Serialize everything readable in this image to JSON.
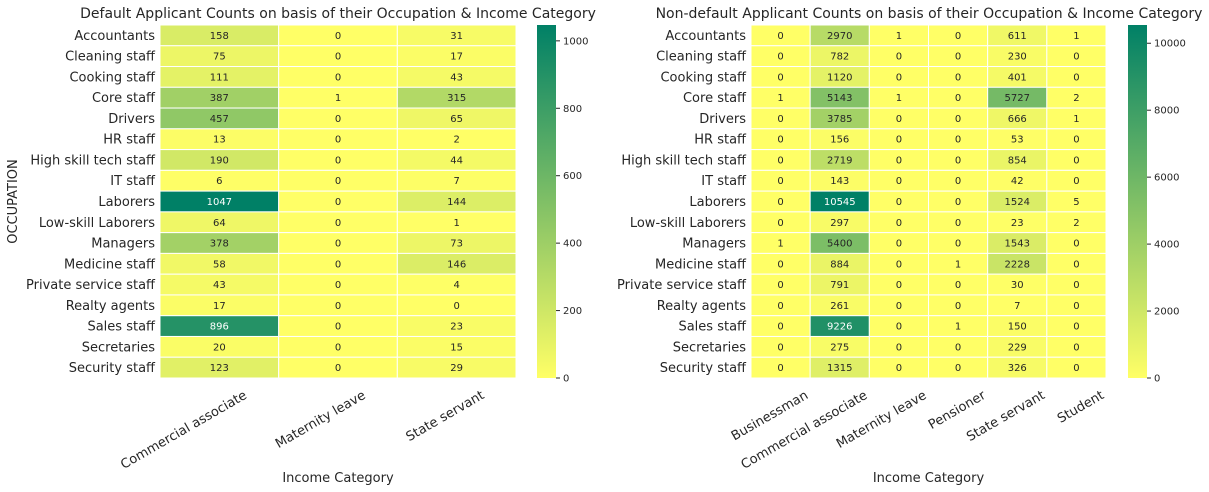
{
  "chart_data": [
    {
      "type": "heatmap",
      "title": "Default Applicant Counts on basis of their Occupation & Income Category",
      "xlabel": "Income Category",
      "ylabel": "OCCUPATION",
      "x_categories": [
        "Commercial associate",
        "Maternity leave",
        "State servant"
      ],
      "y_categories": [
        "Accountants",
        "Cleaning staff",
        "Cooking staff",
        "Core staff",
        "Drivers",
        "HR staff",
        "High skill tech staff",
        "IT staff",
        "Laborers",
        "Low-skill Laborers",
        "Managers",
        "Medicine staff",
        "Private service staff",
        "Realty agents",
        "Sales staff",
        "Secretaries",
        "Security staff"
      ],
      "values": [
        [
          158,
          0,
          31
        ],
        [
          75,
          0,
          17
        ],
        [
          111,
          0,
          43
        ],
        [
          387,
          1,
          315
        ],
        [
          457,
          0,
          65
        ],
        [
          13,
          0,
          2
        ],
        [
          190,
          0,
          44
        ],
        [
          6,
          0,
          7
        ],
        [
          1047,
          0,
          144
        ],
        [
          64,
          0,
          1
        ],
        [
          378,
          0,
          73
        ],
        [
          58,
          0,
          146
        ],
        [
          43,
          0,
          4
        ],
        [
          17,
          0,
          0
        ],
        [
          896,
          0,
          23
        ],
        [
          20,
          0,
          15
        ],
        [
          123,
          0,
          29
        ]
      ],
      "colorbar": {
        "min": 0,
        "max": 1047,
        "ticks": [
          "0",
          "200",
          "400",
          "600",
          "800",
          "1000"
        ]
      },
      "colormap": "summer_r",
      "colors": {
        "low": "#ffff66",
        "high": "#008066"
      }
    },
    {
      "type": "heatmap",
      "title": "Non-default Applicant Counts on basis of their Occupation & Income Category",
      "xlabel": "Income Category",
      "ylabel": "",
      "x_categories": [
        "Businessman",
        "Commercial associate",
        "Maternity leave",
        "Pensioner",
        "State servant",
        "Student"
      ],
      "y_categories": [
        "Accountants",
        "Cleaning staff",
        "Cooking staff",
        "Core staff",
        "Drivers",
        "HR staff",
        "High skill tech staff",
        "IT staff",
        "Laborers",
        "Low-skill Laborers",
        "Managers",
        "Medicine staff",
        "Private service staff",
        "Realty agents",
        "Sales staff",
        "Secretaries",
        "Security staff"
      ],
      "values": [
        [
          0,
          2970,
          1,
          0,
          611,
          1
        ],
        [
          0,
          782,
          0,
          0,
          230,
          0
        ],
        [
          0,
          1120,
          0,
          0,
          401,
          0
        ],
        [
          1,
          5143,
          1,
          0,
          5727,
          2
        ],
        [
          0,
          3785,
          0,
          0,
          666,
          1
        ],
        [
          0,
          156,
          0,
          0,
          53,
          0
        ],
        [
          0,
          2719,
          0,
          0,
          854,
          0
        ],
        [
          0,
          143,
          0,
          0,
          42,
          0
        ],
        [
          0,
          10545,
          0,
          0,
          1524,
          5
        ],
        [
          0,
          297,
          0,
          0,
          23,
          2
        ],
        [
          1,
          5400,
          0,
          0,
          1543,
          0
        ],
        [
          0,
          884,
          0,
          1,
          2228,
          0
        ],
        [
          0,
          791,
          0,
          0,
          30,
          0
        ],
        [
          0,
          261,
          0,
          0,
          7,
          0
        ],
        [
          0,
          9226,
          0,
          1,
          150,
          0
        ],
        [
          0,
          275,
          0,
          0,
          229,
          0
        ],
        [
          0,
          1315,
          0,
          0,
          326,
          0
        ]
      ],
      "colorbar": {
        "min": 0,
        "max": 10545,
        "ticks": [
          "0",
          "2000",
          "4000",
          "6000",
          "8000",
          "10000"
        ]
      },
      "colormap": "summer_r",
      "colors": {
        "low": "#ffff66",
        "high": "#008066"
      }
    }
  ]
}
